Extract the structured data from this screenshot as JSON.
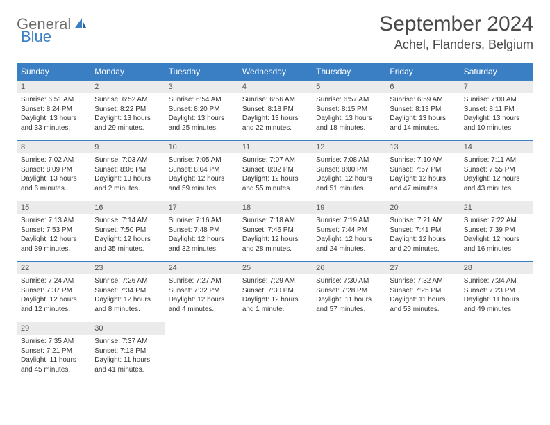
{
  "logo": {
    "word1": "General",
    "word2": "Blue"
  },
  "title": "September 2024",
  "location": "Achel, Flanders, Belgium",
  "colors": {
    "brand_blue": "#3a7fc4",
    "header_text": "#ffffff",
    "logo_gray": "#6b6b6b",
    "daynum_bg": "#ebebeb",
    "body_text": "#333333",
    "title_text": "#4a4a4a"
  },
  "day_headers": [
    "Sunday",
    "Monday",
    "Tuesday",
    "Wednesday",
    "Thursday",
    "Friday",
    "Saturday"
  ],
  "weeks": [
    [
      {
        "n": "1",
        "sunrise": "6:51 AM",
        "sunset": "8:24 PM",
        "daylight": "13 hours and 33 minutes."
      },
      {
        "n": "2",
        "sunrise": "6:52 AM",
        "sunset": "8:22 PM",
        "daylight": "13 hours and 29 minutes."
      },
      {
        "n": "3",
        "sunrise": "6:54 AM",
        "sunset": "8:20 PM",
        "daylight": "13 hours and 25 minutes."
      },
      {
        "n": "4",
        "sunrise": "6:56 AM",
        "sunset": "8:18 PM",
        "daylight": "13 hours and 22 minutes."
      },
      {
        "n": "5",
        "sunrise": "6:57 AM",
        "sunset": "8:15 PM",
        "daylight": "13 hours and 18 minutes."
      },
      {
        "n": "6",
        "sunrise": "6:59 AM",
        "sunset": "8:13 PM",
        "daylight": "13 hours and 14 minutes."
      },
      {
        "n": "7",
        "sunrise": "7:00 AM",
        "sunset": "8:11 PM",
        "daylight": "13 hours and 10 minutes."
      }
    ],
    [
      {
        "n": "8",
        "sunrise": "7:02 AM",
        "sunset": "8:09 PM",
        "daylight": "13 hours and 6 minutes."
      },
      {
        "n": "9",
        "sunrise": "7:03 AM",
        "sunset": "8:06 PM",
        "daylight": "13 hours and 2 minutes."
      },
      {
        "n": "10",
        "sunrise": "7:05 AM",
        "sunset": "8:04 PM",
        "daylight": "12 hours and 59 minutes."
      },
      {
        "n": "11",
        "sunrise": "7:07 AM",
        "sunset": "8:02 PM",
        "daylight": "12 hours and 55 minutes."
      },
      {
        "n": "12",
        "sunrise": "7:08 AM",
        "sunset": "8:00 PM",
        "daylight": "12 hours and 51 minutes."
      },
      {
        "n": "13",
        "sunrise": "7:10 AM",
        "sunset": "7:57 PM",
        "daylight": "12 hours and 47 minutes."
      },
      {
        "n": "14",
        "sunrise": "7:11 AM",
        "sunset": "7:55 PM",
        "daylight": "12 hours and 43 minutes."
      }
    ],
    [
      {
        "n": "15",
        "sunrise": "7:13 AM",
        "sunset": "7:53 PM",
        "daylight": "12 hours and 39 minutes."
      },
      {
        "n": "16",
        "sunrise": "7:14 AM",
        "sunset": "7:50 PM",
        "daylight": "12 hours and 35 minutes."
      },
      {
        "n": "17",
        "sunrise": "7:16 AM",
        "sunset": "7:48 PM",
        "daylight": "12 hours and 32 minutes."
      },
      {
        "n": "18",
        "sunrise": "7:18 AM",
        "sunset": "7:46 PM",
        "daylight": "12 hours and 28 minutes."
      },
      {
        "n": "19",
        "sunrise": "7:19 AM",
        "sunset": "7:44 PM",
        "daylight": "12 hours and 24 minutes."
      },
      {
        "n": "20",
        "sunrise": "7:21 AM",
        "sunset": "7:41 PM",
        "daylight": "12 hours and 20 minutes."
      },
      {
        "n": "21",
        "sunrise": "7:22 AM",
        "sunset": "7:39 PM",
        "daylight": "12 hours and 16 minutes."
      }
    ],
    [
      {
        "n": "22",
        "sunrise": "7:24 AM",
        "sunset": "7:37 PM",
        "daylight": "12 hours and 12 minutes."
      },
      {
        "n": "23",
        "sunrise": "7:26 AM",
        "sunset": "7:34 PM",
        "daylight": "12 hours and 8 minutes."
      },
      {
        "n": "24",
        "sunrise": "7:27 AM",
        "sunset": "7:32 PM",
        "daylight": "12 hours and 4 minutes."
      },
      {
        "n": "25",
        "sunrise": "7:29 AM",
        "sunset": "7:30 PM",
        "daylight": "12 hours and 1 minute."
      },
      {
        "n": "26",
        "sunrise": "7:30 AM",
        "sunset": "7:28 PM",
        "daylight": "11 hours and 57 minutes."
      },
      {
        "n": "27",
        "sunrise": "7:32 AM",
        "sunset": "7:25 PM",
        "daylight": "11 hours and 53 minutes."
      },
      {
        "n": "28",
        "sunrise": "7:34 AM",
        "sunset": "7:23 PM",
        "daylight": "11 hours and 49 minutes."
      }
    ],
    [
      {
        "n": "29",
        "sunrise": "7:35 AM",
        "sunset": "7:21 PM",
        "daylight": "11 hours and 45 minutes."
      },
      {
        "n": "30",
        "sunrise": "7:37 AM",
        "sunset": "7:18 PM",
        "daylight": "11 hours and 41 minutes."
      },
      null,
      null,
      null,
      null,
      null
    ]
  ],
  "labels": {
    "sunrise": "Sunrise:",
    "sunset": "Sunset:",
    "daylight": "Daylight:"
  }
}
